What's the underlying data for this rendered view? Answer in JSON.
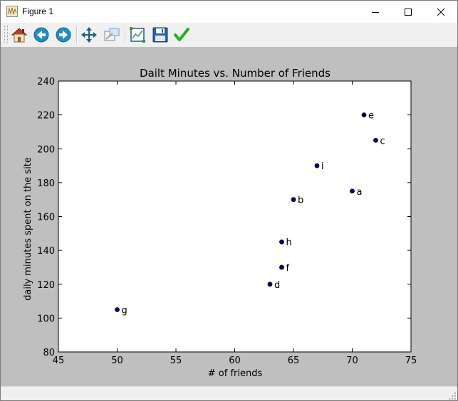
{
  "window": {
    "title": "Figure 1",
    "controls": {
      "minimize": "minimize",
      "maximize": "maximize",
      "close": "close"
    }
  },
  "toolbar": {
    "items": [
      {
        "name": "home-button",
        "icon": "home-icon"
      },
      {
        "name": "back-button",
        "icon": "arrow-left-icon"
      },
      {
        "name": "forward-button",
        "icon": "arrow-right-icon"
      },
      {
        "name": "pan-button",
        "icon": "move-arrows-icon"
      },
      {
        "name": "zoom-button",
        "icon": "zoom-rect-icon"
      },
      {
        "name": "subplots-button",
        "icon": "subplots-icon"
      },
      {
        "name": "save-button",
        "icon": "floppy-disk-icon"
      },
      {
        "name": "edit-axis-button",
        "icon": "checkmark-icon"
      }
    ]
  },
  "colors": {
    "figure_background": "#bfbfbf",
    "axes_background": "#ffffff",
    "marker": "#00007f",
    "home_roof": "#c0392b",
    "nav_blue": "#1f8fc6",
    "check_green": "#1db31d"
  },
  "chart_data": {
    "type": "scatter",
    "title": "Dailt Minutes vs. Number of Friends",
    "xlabel": "# of friends",
    "ylabel": "daily minutes spent on the site",
    "xlim": [
      45,
      75
    ],
    "ylim": [
      80,
      240
    ],
    "xticks": [
      "45",
      "50",
      "55",
      "60",
      "65",
      "70",
      "75"
    ],
    "yticks": [
      "80",
      "100",
      "120",
      "140",
      "160",
      "180",
      "200",
      "220",
      "240"
    ],
    "grid": false,
    "points": [
      {
        "label": "a",
        "x": 70,
        "y": 175
      },
      {
        "label": "b",
        "x": 65,
        "y": 170
      },
      {
        "label": "c",
        "x": 72,
        "y": 205
      },
      {
        "label": "d",
        "x": 63,
        "y": 120
      },
      {
        "label": "e",
        "x": 71,
        "y": 220
      },
      {
        "label": "f",
        "x": 64,
        "y": 130
      },
      {
        "label": "g",
        "x": 50,
        "y": 105
      },
      {
        "label": "h",
        "x": 64,
        "y": 145
      },
      {
        "label": "i",
        "x": 67,
        "y": 190
      }
    ]
  }
}
